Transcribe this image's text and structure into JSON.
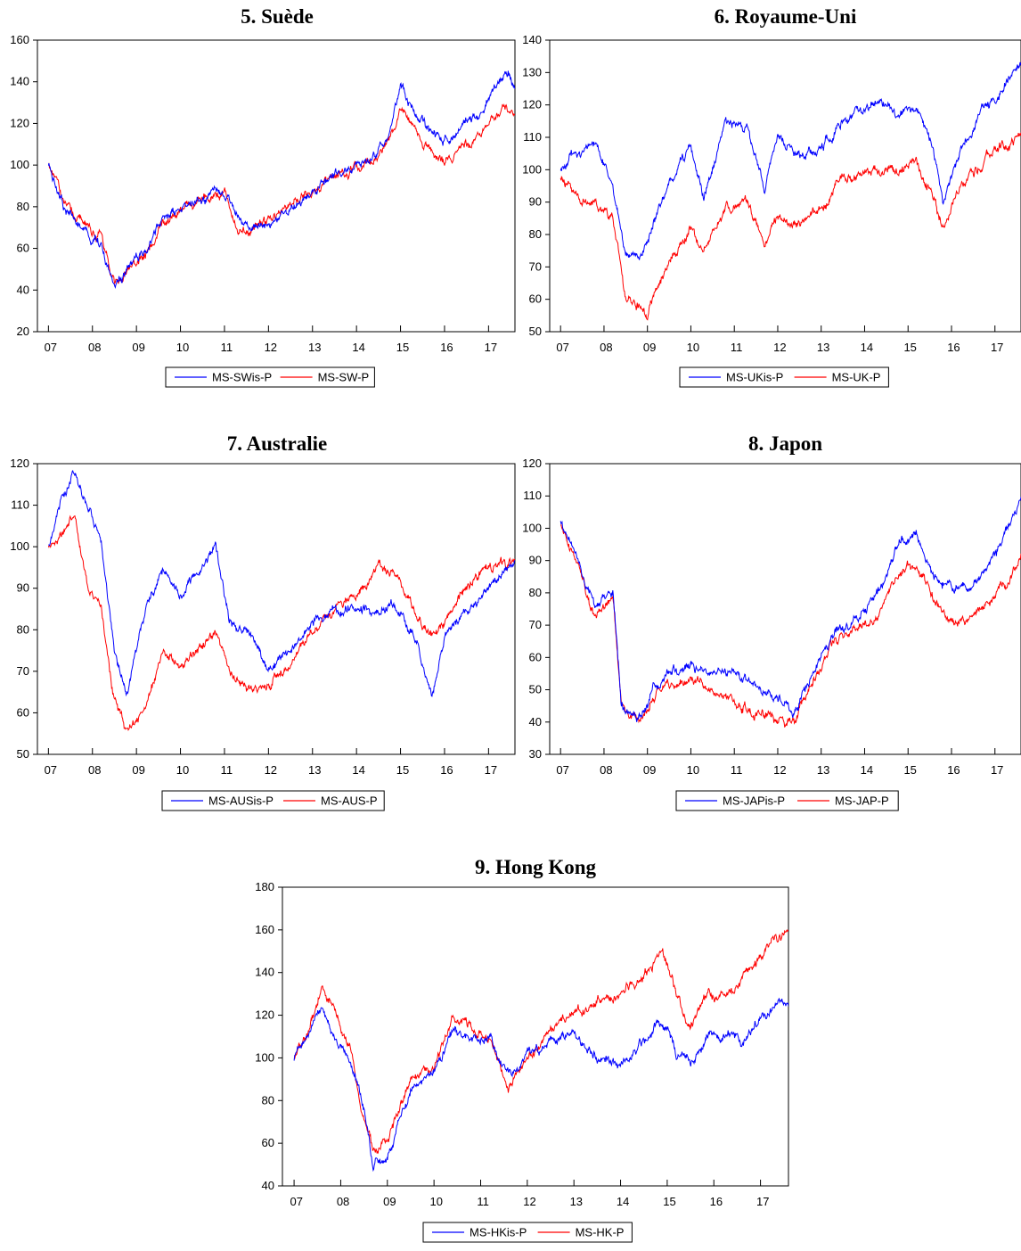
{
  "chart_data": [
    {
      "type": "line",
      "title": "5. Suède",
      "x_tick_labels": [
        "07",
        "08",
        "09",
        "10",
        "11",
        "12",
        "13",
        "14",
        "15",
        "16",
        "17"
      ],
      "ylim": [
        20,
        160
      ],
      "y_ticks": [
        20,
        40,
        60,
        80,
        100,
        120,
        140,
        160
      ],
      "legend_placement": "bottom",
      "series": [
        {
          "name": "MS-SWis-P",
          "color": "#0000ff",
          "x": [
            2007.0,
            2007.4,
            2007.8,
            2008.2,
            2008.5,
            2008.8,
            2009.2,
            2009.6,
            2010.0,
            2010.5,
            2011.0,
            2011.3,
            2011.6,
            2012.0,
            2012.5,
            2013.0,
            2013.5,
            2014.0,
            2014.5,
            2014.8,
            2015.0,
            2015.3,
            2015.6,
            2016.0,
            2016.4,
            2016.8,
            2017.2,
            2017.4,
            2017.6
          ],
          "values": [
            100,
            78,
            70,
            60,
            40,
            50,
            60,
            75,
            80,
            85,
            88,
            74,
            70,
            72,
            80,
            88,
            95,
            100,
            105,
            120,
            138,
            125,
            118,
            112,
            118,
            125,
            140,
            146,
            136
          ]
        },
        {
          "name": "MS-SW-P",
          "color": "#ff0000",
          "x": [
            2007.0,
            2007.4,
            2007.8,
            2008.2,
            2008.5,
            2008.8,
            2009.2,
            2009.6,
            2010.0,
            2010.5,
            2011.0,
            2011.3,
            2011.6,
            2012.0,
            2012.5,
            2013.0,
            2013.5,
            2014.0,
            2014.5,
            2014.8,
            2015.0,
            2015.3,
            2015.6,
            2016.0,
            2016.4,
            2016.8,
            2017.2,
            2017.4,
            2017.6
          ],
          "values": [
            100,
            80,
            73,
            65,
            44,
            50,
            58,
            72,
            78,
            84,
            87,
            68,
            68,
            74,
            80,
            87,
            94,
            100,
            104,
            115,
            127,
            118,
            110,
            100,
            108,
            115,
            124,
            129,
            123
          ]
        }
      ]
    },
    {
      "type": "line",
      "title": "6. Royaume-Uni",
      "x_tick_labels": [
        "07",
        "08",
        "09",
        "10",
        "11",
        "12",
        "13",
        "14",
        "15",
        "16",
        "17"
      ],
      "ylim": [
        50,
        140
      ],
      "y_ticks": [
        50,
        60,
        70,
        80,
        90,
        100,
        110,
        120,
        130,
        140
      ],
      "legend_placement": "bottom",
      "series": [
        {
          "name": "MS-UKis-P",
          "color": "#0000ff",
          "x": [
            2007.0,
            2007.3,
            2007.8,
            2008.2,
            2008.5,
            2008.8,
            2009.0,
            2009.5,
            2010.0,
            2010.3,
            2010.8,
            2011.3,
            2011.7,
            2012.0,
            2012.5,
            2013.0,
            2013.5,
            2014.0,
            2014.3,
            2014.8,
            2015.2,
            2015.5,
            2015.8,
            2016.2,
            2016.7,
            2017.0,
            2017.4,
            2017.6
          ],
          "values": [
            100,
            105,
            108,
            95,
            75,
            72,
            78,
            95,
            108,
            92,
            115,
            112,
            95,
            110,
            103,
            107,
            115,
            118,
            122,
            118,
            118,
            110,
            90,
            105,
            118,
            120,
            130,
            133
          ]
        },
        {
          "name": "MS-UK-P",
          "color": "#ff0000",
          "x": [
            2007.0,
            2007.3,
            2007.8,
            2008.2,
            2008.5,
            2008.8,
            2009.0,
            2009.5,
            2010.0,
            2010.3,
            2010.8,
            2011.3,
            2011.7,
            2012.0,
            2012.5,
            2013.0,
            2013.5,
            2014.0,
            2014.3,
            2014.8,
            2015.2,
            2015.5,
            2015.8,
            2016.2,
            2016.7,
            2017.0,
            2017.4,
            2017.6
          ],
          "values": [
            98,
            92,
            90,
            85,
            60,
            58,
            55,
            72,
            82,
            75,
            88,
            90,
            77,
            85,
            83,
            88,
            97,
            100,
            100,
            100,
            102,
            95,
            82,
            95,
            102,
            106,
            108,
            110
          ]
        }
      ]
    },
    {
      "type": "line",
      "title": "7. Australie",
      "x_tick_labels": [
        "07",
        "08",
        "09",
        "10",
        "11",
        "12",
        "13",
        "14",
        "15",
        "16",
        "17"
      ],
      "ylim": [
        50,
        120
      ],
      "y_ticks": [
        50,
        60,
        70,
        80,
        90,
        100,
        110,
        120
      ],
      "legend_placement": "bottom",
      "series": [
        {
          "name": "MS-AUSis-P",
          "color": "#0000ff",
          "x": [
            2007.0,
            2007.3,
            2007.6,
            2007.9,
            2008.2,
            2008.5,
            2008.8,
            2009.2,
            2009.6,
            2010.0,
            2010.5,
            2010.8,
            2011.1,
            2011.5,
            2012.0,
            2012.5,
            2013.0,
            2013.5,
            2014.0,
            2014.5,
            2015.0,
            2015.4,
            2015.7,
            2016.0,
            2016.5,
            2017.0,
            2017.6
          ],
          "values": [
            100,
            112,
            118,
            110,
            100,
            75,
            65,
            85,
            95,
            88,
            95,
            100,
            82,
            80,
            70,
            75,
            82,
            85,
            85,
            85,
            85,
            75,
            64,
            78,
            85,
            90,
            97
          ]
        },
        {
          "name": "MS-AUS-P",
          "color": "#ff0000",
          "x": [
            2007.0,
            2007.3,
            2007.6,
            2007.9,
            2008.2,
            2008.5,
            2008.8,
            2009.2,
            2009.6,
            2010.0,
            2010.5,
            2010.8,
            2011.1,
            2011.5,
            2012.0,
            2012.5,
            2013.0,
            2013.5,
            2014.0,
            2014.5,
            2015.0,
            2015.4,
            2015.7,
            2016.0,
            2016.5,
            2017.0,
            2017.6
          ],
          "values": [
            100,
            102,
            108,
            90,
            85,
            62,
            55,
            62,
            75,
            72,
            76,
            80,
            70,
            66,
            66,
            72,
            80,
            85,
            88,
            95,
            92,
            82,
            78,
            82,
            90,
            95,
            96
          ]
        }
      ]
    },
    {
      "type": "line",
      "title": "8. Japon",
      "x_tick_labels": [
        "07",
        "08",
        "09",
        "10",
        "11",
        "12",
        "13",
        "14",
        "15",
        "16",
        "17"
      ],
      "ylim": [
        30,
        120
      ],
      "y_ticks": [
        30,
        40,
        50,
        60,
        70,
        80,
        90,
        100,
        110,
        120
      ],
      "legend_placement": "bottom",
      "series": [
        {
          "name": "MS-JAPis-P",
          "color": "#0000ff",
          "x": [
            2007.0,
            2007.4,
            2007.8,
            2008.2,
            2008.4,
            2008.8,
            2009.2,
            2009.6,
            2010.0,
            2010.5,
            2011.0,
            2011.5,
            2012.0,
            2012.4,
            2012.8,
            2013.3,
            2013.8,
            2014.3,
            2014.8,
            2015.2,
            2015.6,
            2016.0,
            2016.5,
            2017.0,
            2017.4,
            2017.6
          ],
          "values": [
            102,
            90,
            75,
            80,
            45,
            40,
            52,
            56,
            58,
            55,
            55,
            50,
            47,
            43,
            55,
            68,
            72,
            80,
            96,
            98,
            85,
            82,
            82,
            92,
            102,
            110
          ]
        },
        {
          "name": "MS-JAP-P",
          "color": "#ff0000",
          "x": [
            2007.0,
            2007.4,
            2007.8,
            2008.2,
            2008.4,
            2008.8,
            2009.2,
            2009.6,
            2010.0,
            2010.5,
            2011.0,
            2011.5,
            2012.0,
            2012.4,
            2012.8,
            2013.3,
            2013.8,
            2014.3,
            2014.8,
            2015.2,
            2015.6,
            2016.0,
            2016.5,
            2017.0,
            2017.4,
            2017.6
          ],
          "values": [
            100,
            88,
            72,
            80,
            45,
            40,
            50,
            52,
            54,
            50,
            47,
            43,
            40,
            40,
            52,
            66,
            68,
            72,
            86,
            90,
            78,
            70,
            72,
            80,
            85,
            92
          ]
        }
      ]
    },
    {
      "type": "line",
      "title": "9. Hong Kong",
      "x_tick_labels": [
        "07",
        "08",
        "09",
        "10",
        "11",
        "12",
        "13",
        "14",
        "15",
        "16",
        "17"
      ],
      "ylim": [
        40,
        180
      ],
      "y_ticks": [
        40,
        60,
        80,
        100,
        120,
        140,
        160,
        180
      ],
      "legend_placement": "bottom",
      "series": [
        {
          "name": "MS-HKis-P",
          "color": "#0000ff",
          "x": [
            2007.0,
            2007.3,
            2007.6,
            2007.9,
            2008.2,
            2008.5,
            2008.7,
            2009.0,
            2009.5,
            2010.0,
            2010.4,
            2010.8,
            2011.2,
            2011.6,
            2012.0,
            2012.5,
            2013.0,
            2013.5,
            2014.0,
            2014.5,
            2014.9,
            2015.2,
            2015.5,
            2015.9,
            2016.3,
            2016.7,
            2017.1,
            2017.6
          ],
          "values": [
            100,
            110,
            122,
            110,
            100,
            75,
            50,
            55,
            85,
            95,
            112,
            108,
            110,
            92,
            100,
            108,
            112,
            100,
            95,
            108,
            118,
            100,
            98,
            112,
            110,
            108,
            120,
            127
          ]
        },
        {
          "name": "MS-HK-P",
          "color": "#ff0000",
          "x": [
            2007.0,
            2007.3,
            2007.6,
            2007.9,
            2008.2,
            2008.5,
            2008.7,
            2009.0,
            2009.5,
            2010.0,
            2010.4,
            2010.8,
            2011.2,
            2011.6,
            2012.0,
            2012.5,
            2013.0,
            2013.5,
            2014.0,
            2014.5,
            2014.9,
            2015.2,
            2015.5,
            2015.9,
            2016.3,
            2016.7,
            2017.1,
            2017.6
          ],
          "values": [
            100,
            112,
            135,
            120,
            105,
            72,
            55,
            60,
            88,
            95,
            120,
            115,
            108,
            85,
            100,
            112,
            122,
            126,
            130,
            140,
            150,
            128,
            115,
            130,
            128,
            140,
            150,
            161
          ]
        }
      ]
    }
  ]
}
